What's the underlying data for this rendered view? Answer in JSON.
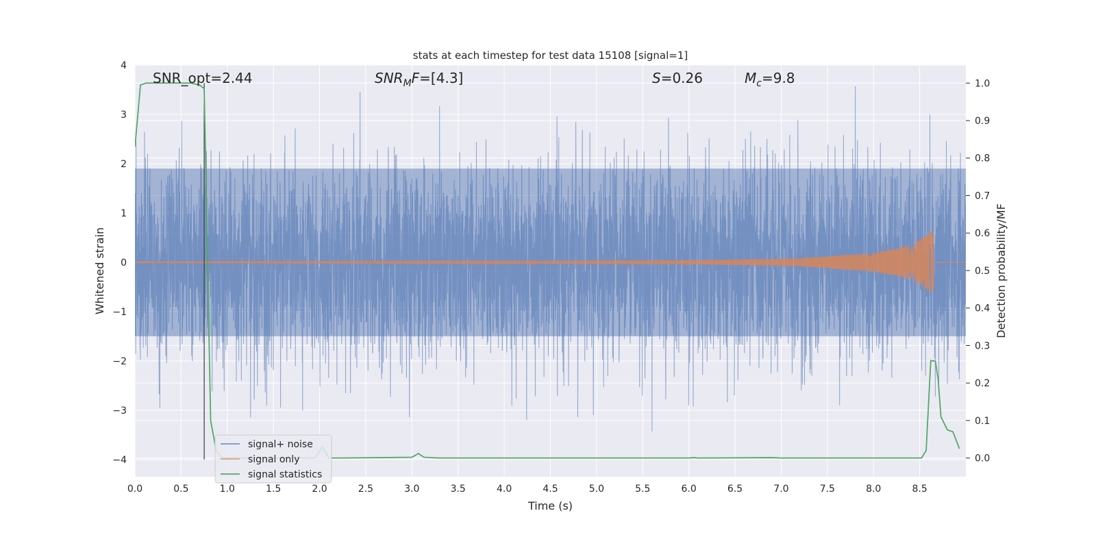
{
  "chart_data": {
    "type": "line",
    "title": "stats at each timestep for test data 15108 [signal=1]",
    "xlabel": "Time (s)",
    "ylabel": "Whitened strain",
    "y2label": "Detection probability/MF",
    "xlim": [
      0.0,
      9.0
    ],
    "ylim": [
      -4.35,
      4.0
    ],
    "y2lim": [
      -0.05,
      1.048
    ],
    "x_ticks": [
      "0.0",
      "0.5",
      "1.0",
      "1.5",
      "2.0",
      "2.5",
      "3.0",
      "3.5",
      "4.0",
      "4.5",
      "5.0",
      "5.5",
      "6.0",
      "6.5",
      "7.0",
      "7.5",
      "8.0",
      "8.5"
    ],
    "y_ticks": [
      "−4",
      "−3",
      "−2",
      "−1",
      "0",
      "1",
      "2",
      "3",
      "4"
    ],
    "y2_ticks": [
      "0.0",
      "0.1",
      "0.2",
      "0.3",
      "0.4",
      "0.5",
      "0.6",
      "0.7",
      "0.8",
      "0.9",
      "1.0"
    ],
    "grid": true,
    "legend_position": "lower-left",
    "annotations": [
      {
        "label": "SNR_opt=2.44",
        "parts": [
          {
            "t": "SNR_opt=2.44"
          }
        ]
      },
      {
        "label": "SNR_MF=[4.3]",
        "parts": [
          {
            "t": "SNR",
            "italic": true
          },
          {
            "t": "M",
            "italic": true,
            "sub": true
          },
          {
            "t": "F",
            "italic": true
          },
          {
            "t": "=[4.3]"
          }
        ]
      },
      {
        "label": "S=0.26",
        "parts": [
          {
            "t": "S",
            "italic": true
          },
          {
            "t": "=0.26"
          }
        ]
      },
      {
        "label": "M_c=9.8",
        "parts": [
          {
            "t": "M",
            "italic": true
          },
          {
            "t": "c",
            "italic": true,
            "sub": true
          },
          {
            "t": "=9.8"
          }
        ]
      }
    ],
    "vline_x": 0.75,
    "series": [
      {
        "name": "signal+ noise",
        "color": "#4c72b0",
        "axis": "left",
        "style": "dense noise, approx. gaussian (sigma≈1), range about -4 to 3.6",
        "envelope": {
          "body_min": -1.5,
          "body_max": 1.9,
          "peak_max": 3.6,
          "peak_min": -4.0
        }
      },
      {
        "name": "signal only",
        "color": "#dd8452",
        "axis": "left",
        "style": "chirp, amplitude grows toward merger at t≈8.65",
        "chirp_end": 8.65,
        "envelope_points": [
          [
            0.0,
            0.01
          ],
          [
            4.0,
            0.02
          ],
          [
            6.0,
            0.04
          ],
          [
            7.0,
            0.07
          ],
          [
            7.5,
            0.12
          ],
          [
            8.0,
            0.2
          ],
          [
            8.3,
            0.3
          ],
          [
            8.5,
            0.45
          ],
          [
            8.6,
            0.6
          ],
          [
            8.65,
            0.65
          ]
        ]
      },
      {
        "name": "signal statistics",
        "color": "#55a868",
        "axis": "right",
        "points": [
          [
            0.0,
            0.83
          ],
          [
            0.06,
            0.995
          ],
          [
            0.12,
            1.0
          ],
          [
            0.3,
            1.0
          ],
          [
            0.5,
            1.0
          ],
          [
            0.6,
            1.0
          ],
          [
            0.7,
            0.995
          ],
          [
            0.75,
            0.985
          ],
          [
            0.82,
            0.1
          ],
          [
            0.88,
            0.02
          ],
          [
            0.94,
            0.0
          ],
          [
            1.0,
            0.0
          ],
          [
            1.8,
            0.0
          ],
          [
            1.95,
            0.0
          ],
          [
            2.03,
            0.03
          ],
          [
            2.1,
            0.0
          ],
          [
            2.2,
            0.0
          ],
          [
            3.0,
            0.002
          ],
          [
            3.07,
            0.012
          ],
          [
            3.13,
            0.002
          ],
          [
            3.3,
            0.0
          ],
          [
            6.0,
            0.0
          ],
          [
            6.05,
            0.001
          ],
          [
            6.1,
            0.0
          ],
          [
            6.9,
            0.001
          ],
          [
            7.0,
            0.0
          ],
          [
            8.0,
            0.0
          ],
          [
            8.52,
            0.0
          ],
          [
            8.57,
            0.02
          ],
          [
            8.62,
            0.26
          ],
          [
            8.67,
            0.258
          ],
          [
            8.7,
            0.21
          ],
          [
            8.73,
            0.11
          ],
          [
            8.8,
            0.075
          ],
          [
            8.86,
            0.07
          ],
          [
            8.93,
            0.025
          ]
        ]
      }
    ]
  }
}
